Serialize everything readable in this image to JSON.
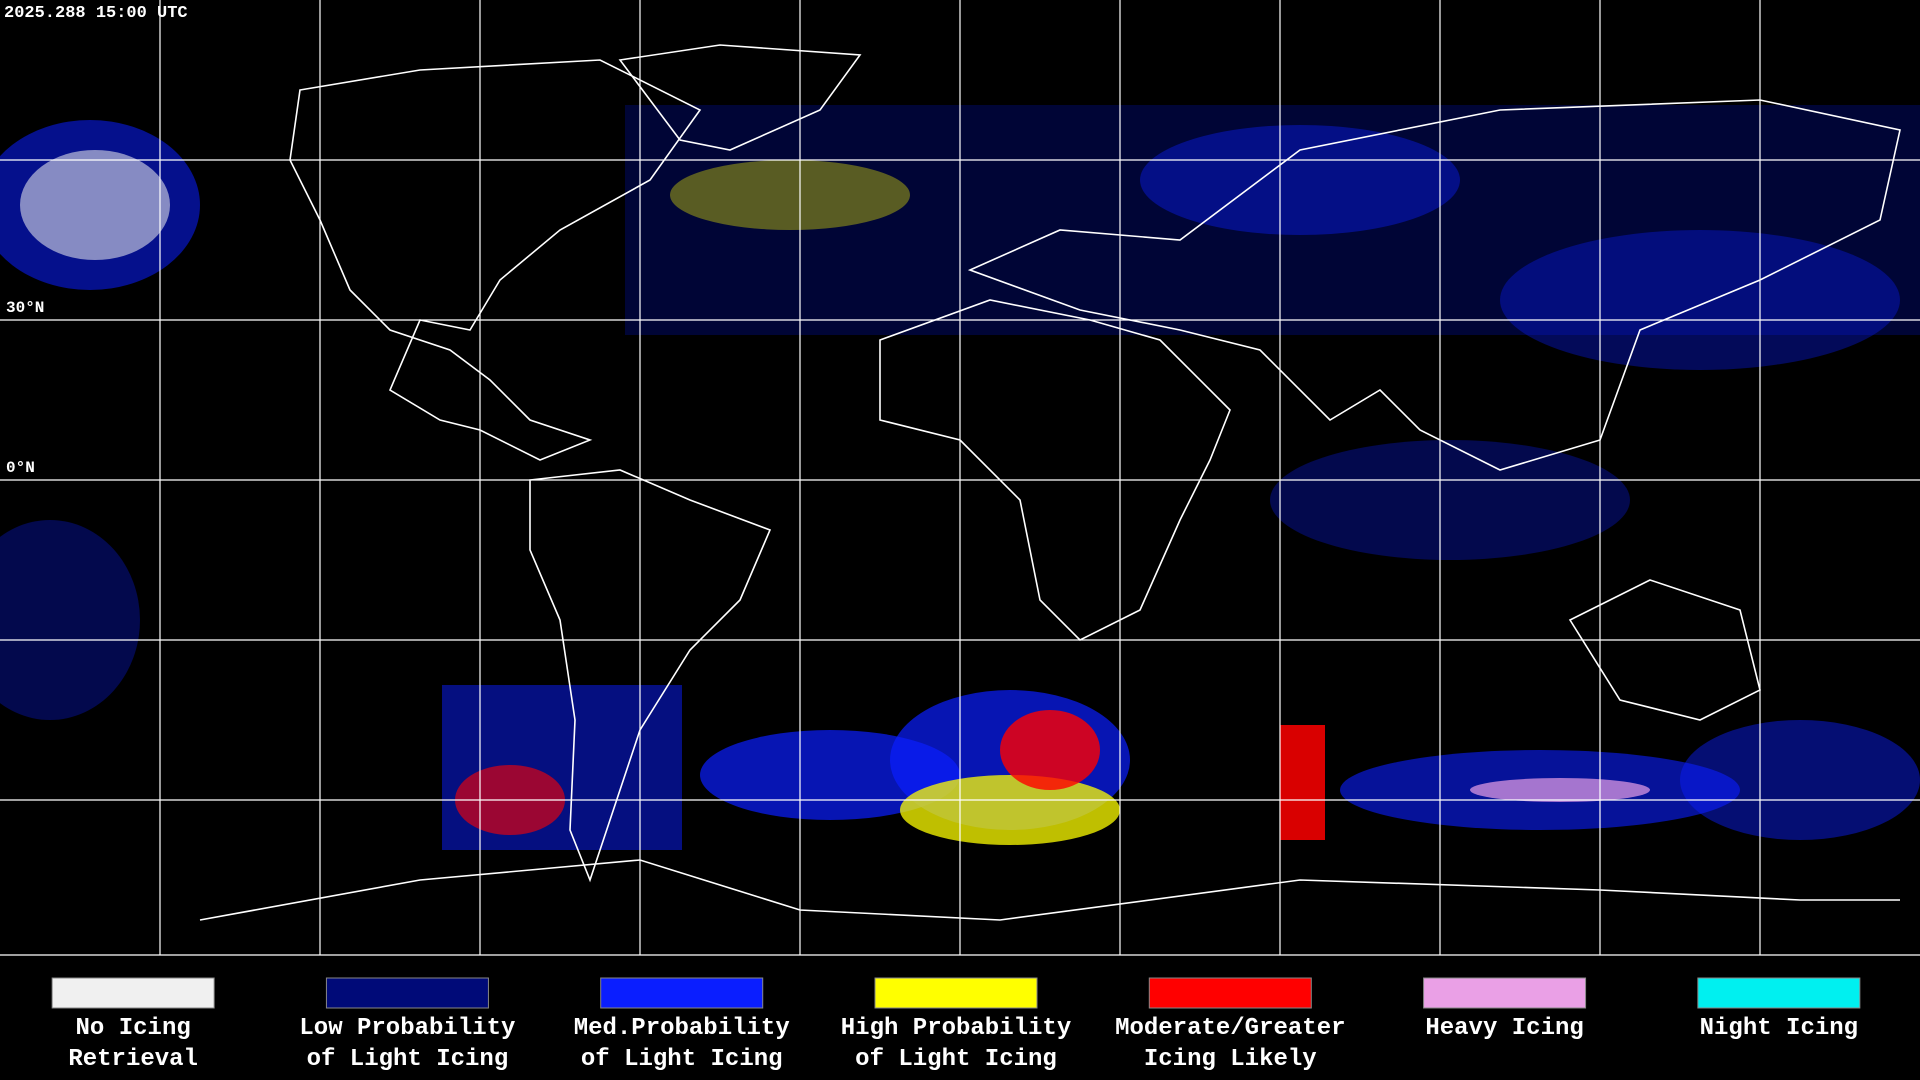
{
  "timestamp": "2025.288 15:00 UTC",
  "latitude_labels": [
    "30°N",
    "0°N"
  ],
  "legend": [
    {
      "label_lines": [
        "No Icing",
        "Retrieval"
      ],
      "color": "#f0f0f0"
    },
    {
      "label_lines": [
        "Low Probability",
        "of Light Icing"
      ],
      "color": "#000a78"
    },
    {
      "label_lines": [
        "Med.Probability",
        "of Light Icing"
      ],
      "color": "#0a1eff"
    },
    {
      "label_lines": [
        "High Probability",
        "of Light Icing"
      ],
      "color": "#ffff00"
    },
    {
      "label_lines": [
        "Moderate/Greater",
        "Icing Likely"
      ],
      "color": "#ff0000"
    },
    {
      "label_lines": [
        "Heavy Icing"
      ],
      "color": "#eaa0e6"
    },
    {
      "label_lines": [
        "Night Icing"
      ],
      "color": "#00f0f0"
    }
  ]
}
